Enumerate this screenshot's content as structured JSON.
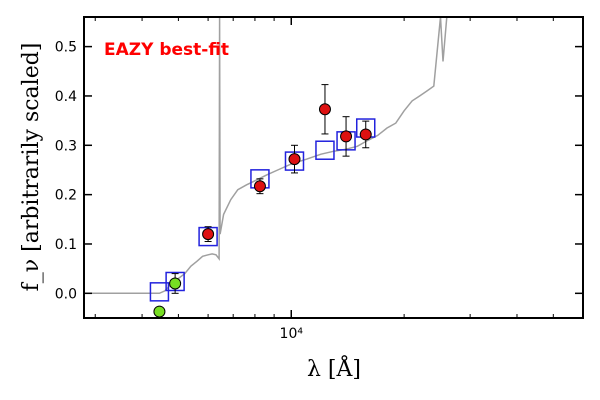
{
  "chart_data": {
    "type": "scatter",
    "annotation": "EAZY best-fit",
    "annotation_color": "#ff0000",
    "xlabel": "λ [Å]",
    "ylabel": "f_ν [arbitrarily scaled]",
    "x_scale": "log",
    "xlim": [
      2800,
      60000
    ],
    "ylim": [
      -0.05,
      0.56
    ],
    "x_tick_labels": [
      {
        "value": 10000,
        "label": "10⁴"
      }
    ],
    "y_ticks": [
      0.0,
      0.1,
      0.2,
      0.3,
      0.4,
      0.5
    ],
    "y_tick_labels": [
      "0.0",
      "0.1",
      "0.2",
      "0.3",
      "0.4",
      "0.5"
    ],
    "grid": false,
    "colors": {
      "model_line": "#a0a0a0",
      "model_flux": "#2222dd",
      "observed_red": "#dd1111",
      "observed_green": "#77dd22",
      "errorbar": "#000000"
    },
    "series": [
      {
        "kind": "line",
        "points": [
          [
            2800,
            0.0
          ],
          [
            4450,
            0.0
          ],
          [
            4600,
            0.005
          ],
          [
            4800,
            0.02
          ],
          [
            5000,
            0.03
          ],
          [
            5200,
            0.04
          ],
          [
            5400,
            0.055
          ],
          [
            5600,
            0.065
          ],
          [
            5800,
            0.075
          ],
          [
            6000,
            0.078
          ],
          [
            6150,
            0.08
          ],
          [
            6300,
            0.078
          ],
          [
            6420,
            0.07
          ],
          [
            6440,
            0.56
          ],
          [
            6460,
            0.12
          ],
          [
            6600,
            0.16
          ],
          [
            6900,
            0.19
          ],
          [
            7200,
            0.21
          ],
          [
            7600,
            0.22
          ],
          [
            8000,
            0.228
          ],
          [
            8600,
            0.24
          ],
          [
            9200,
            0.25
          ],
          [
            10000,
            0.262
          ],
          [
            11000,
            0.272
          ],
          [
            12000,
            0.282
          ],
          [
            13000,
            0.288
          ],
          [
            14000,
            0.292
          ],
          [
            15000,
            0.298
          ],
          [
            16000,
            0.31
          ],
          [
            17000,
            0.32
          ],
          [
            18000,
            0.335
          ],
          [
            19000,
            0.345
          ],
          [
            20000,
            0.37
          ],
          [
            21000,
            0.39
          ],
          [
            22000,
            0.4
          ],
          [
            23000,
            0.41
          ],
          [
            24000,
            0.42
          ],
          [
            25000,
            0.56
          ],
          [
            25400,
            0.47
          ],
          [
            26000,
            0.56
          ]
        ]
      },
      {
        "kind": "model_flux",
        "points": [
          [
            4450,
            0.003
          ],
          [
            4900,
            0.024
          ],
          [
            6000,
            0.115
          ],
          [
            8250,
            0.232
          ],
          [
            10200,
            0.268
          ],
          [
            12300,
            0.29
          ],
          [
            14000,
            0.309
          ],
          [
            15800,
            0.335
          ]
        ]
      },
      {
        "kind": "observed",
        "points": [
          {
            "x": 4450,
            "y": -0.037,
            "err": 0.0,
            "color": "green"
          },
          {
            "x": 4900,
            "y": 0.02,
            "err": 0.02,
            "color": "green"
          },
          {
            "x": 6000,
            "y": 0.12,
            "err": 0.015,
            "color": "red"
          },
          {
            "x": 8250,
            "y": 0.217,
            "err": 0.015,
            "color": "red"
          },
          {
            "x": 10200,
            "y": 0.272,
            "err": 0.028,
            "color": "red"
          },
          {
            "x": 12300,
            "y": 0.373,
            "err": 0.05,
            "color": "red"
          },
          {
            "x": 14000,
            "y": 0.318,
            "err": 0.04,
            "color": "red"
          },
          {
            "x": 15800,
            "y": 0.322,
            "err": 0.027,
            "color": "red"
          }
        ]
      }
    ]
  }
}
